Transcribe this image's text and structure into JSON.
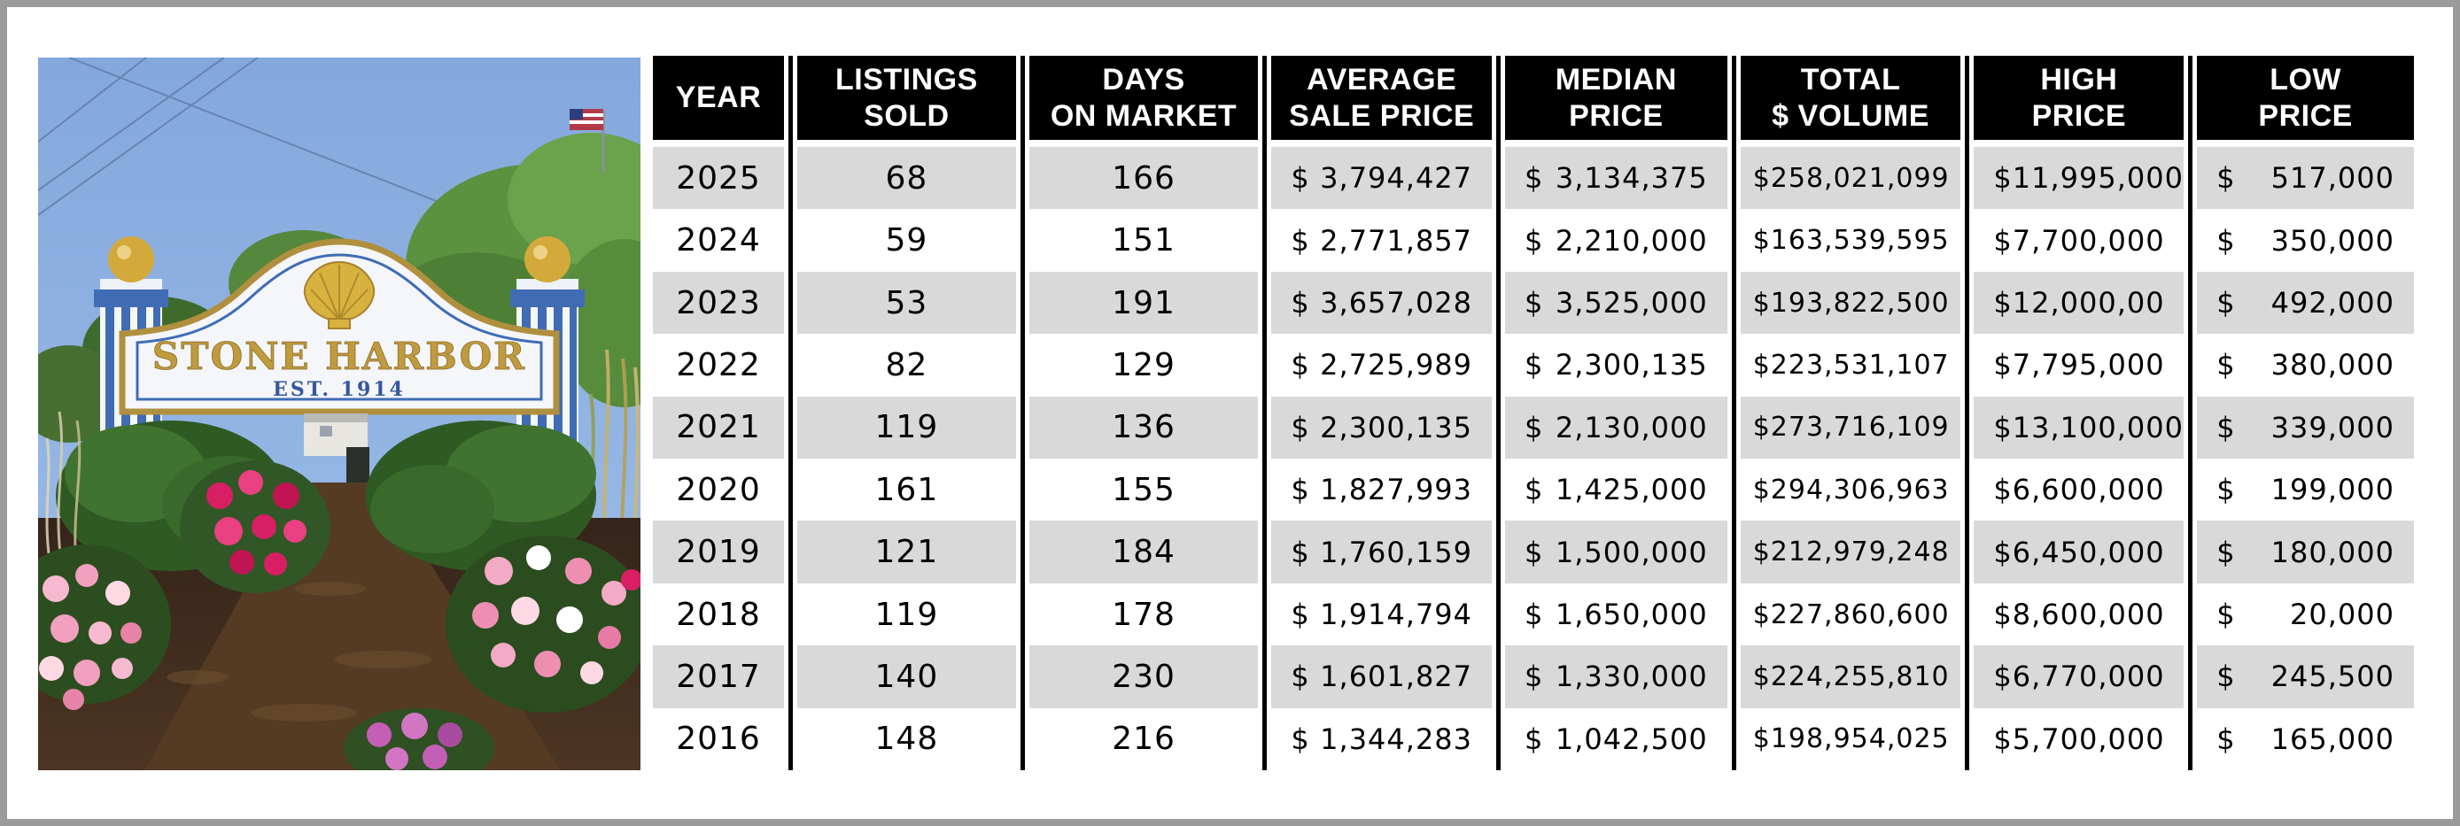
{
  "colors": {
    "frame": "#9b9b9b",
    "table_header_bg": "#000000",
    "table_header_text": "#ffffff",
    "row_stripe": "#d9d9d9",
    "row_alt": "#ffffff",
    "text": "#000000",
    "sign_gold": "#c09a3e",
    "sign_blue": "#34579f",
    "sky": "#8fb2e2"
  },
  "photo": {
    "description": "Stone Harbor entrance sign with gold scallop shell, blue striped posts, garden path and pink flowers",
    "sign_title": "STONE HARBOR",
    "sign_subtitle": "EST. 1914"
  },
  "table": {
    "currency_symbol": "$",
    "columns": [
      {
        "id": "year",
        "header_lines": [
          "YEAR"
        ]
      },
      {
        "id": "listings_sold",
        "header_lines": [
          "LISTINGS",
          "SOLD"
        ]
      },
      {
        "id": "days_on_market",
        "header_lines": [
          "DAYS",
          "ON MARKET"
        ]
      },
      {
        "id": "average_sale_price",
        "header_lines": [
          "AVERAGE",
          "SALE PRICE"
        ]
      },
      {
        "id": "median_price",
        "header_lines": [
          "MEDIAN",
          "PRICE"
        ]
      },
      {
        "id": "total_volume",
        "header_lines": [
          "TOTAL",
          "$ VOLUME"
        ]
      },
      {
        "id": "high_price",
        "header_lines": [
          "HIGH",
          "PRICE"
        ]
      },
      {
        "id": "low_price",
        "header_lines": [
          "LOW",
          "PRICE"
        ]
      }
    ],
    "rows": [
      {
        "year": "2025",
        "listings_sold": "68",
        "days_on_market": "166",
        "average_sale_price": "3,794,427",
        "median_price": "3,134,375",
        "total_volume": "258,021,099",
        "high_price": "11,995,000",
        "low_price": "517,000"
      },
      {
        "year": "2024",
        "listings_sold": "59",
        "days_on_market": "151",
        "average_sale_price": "2,771,857",
        "median_price": "2,210,000",
        "total_volume": "163,539,595",
        "high_price": "7,700,000",
        "low_price": "350,000"
      },
      {
        "year": "2023",
        "listings_sold": "53",
        "days_on_market": "191",
        "average_sale_price": "3,657,028",
        "median_price": "3,525,000",
        "total_volume": "193,822,500",
        "high_price": "12,000,00",
        "low_price": "492,000"
      },
      {
        "year": "2022",
        "listings_sold": "82",
        "days_on_market": "129",
        "average_sale_price": "2,725,989",
        "median_price": "2,300,135",
        "total_volume": "223,531,107",
        "high_price": "7,795,000",
        "low_price": "380,000"
      },
      {
        "year": "2021",
        "listings_sold": "119",
        "days_on_market": "136",
        "average_sale_price": "2,300,135",
        "median_price": "2,130,000",
        "total_volume": "273,716,109",
        "high_price": "13,100,000",
        "low_price": "339,000"
      },
      {
        "year": "2020",
        "listings_sold": "161",
        "days_on_market": "155",
        "average_sale_price": "1,827,993",
        "median_price": "1,425,000",
        "total_volume": "294,306,963",
        "high_price": "6,600,000",
        "low_price": "199,000"
      },
      {
        "year": "2019",
        "listings_sold": "121",
        "days_on_market": "184",
        "average_sale_price": "1,760,159",
        "median_price": "1,500,000",
        "total_volume": "212,979,248",
        "high_price": "6,450,000",
        "low_price": "180,000"
      },
      {
        "year": "2018",
        "listings_sold": "119",
        "days_on_market": "178",
        "average_sale_price": "1,914,794",
        "median_price": "1,650,000",
        "total_volume": "227,860,600",
        "high_price": "8,600,000",
        "low_price": "20,000"
      },
      {
        "year": "2017",
        "listings_sold": "140",
        "days_on_market": "230",
        "average_sale_price": "1,601,827",
        "median_price": "1,330,000",
        "total_volume": "224,255,810",
        "high_price": "6,770,000",
        "low_price": "245,500"
      },
      {
        "year": "2016",
        "listings_sold": "148",
        "days_on_market": "216",
        "average_sale_price": "1,344,283",
        "median_price": "1,042,500",
        "total_volume": "198,954,025",
        "high_price": "5,700,000",
        "low_price": "165,000"
      }
    ]
  }
}
